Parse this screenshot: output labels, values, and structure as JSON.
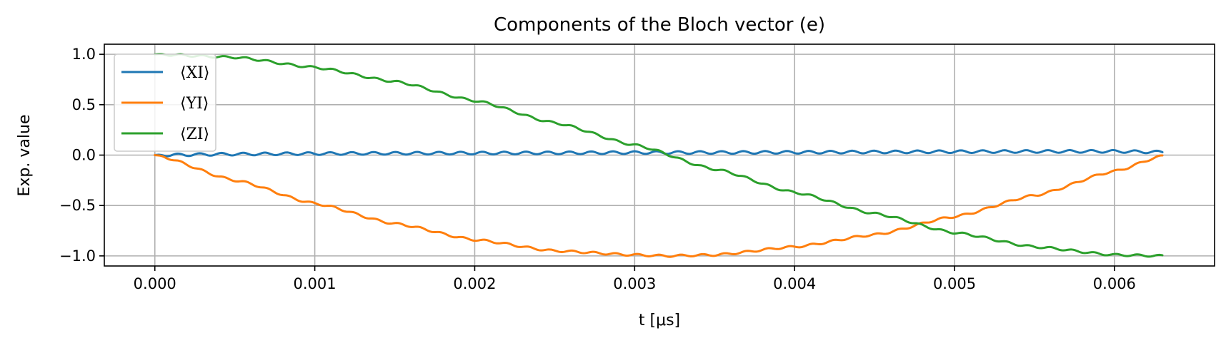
{
  "chart_data": {
    "type": "line",
    "title": "Components of the Bloch vector (e)",
    "xlabel": "t [μs]",
    "ylabel": "Exp. value",
    "xlim": [
      -0.000316,
      0.006626
    ],
    "ylim": [
      -1.1,
      1.1
    ],
    "x_ticks": [
      0.0,
      0.001,
      0.002,
      0.003,
      0.004,
      0.005,
      0.006
    ],
    "x_tick_labels": [
      "0.000",
      "0.001",
      "0.002",
      "0.003",
      "0.004",
      "0.005",
      "0.006"
    ],
    "y_ticks": [
      1.0,
      0.5,
      0.0,
      -0.5,
      -1.0
    ],
    "y_tick_labels": [
      "1.0",
      "0.5",
      "0.0",
      "−0.5",
      "−1.0"
    ],
    "grid": true,
    "legend_position": "upper left",
    "x_range": [
      0.0,
      0.0063
    ],
    "series": [
      {
        "name": "⟨XI⟩",
        "color": "#1f77b4",
        "x": [
          0.0,
          0.0005,
          0.001,
          0.0015,
          0.002,
          0.0025,
          0.003,
          0.0035,
          0.004,
          0.0045,
          0.005,
          0.0055,
          0.006,
          0.0063
        ],
        "values": [
          0.0,
          0.01,
          0.015,
          0.018,
          0.02,
          0.022,
          0.025,
          0.026,
          0.028,
          0.031,
          0.034,
          0.036,
          0.037,
          0.03
        ],
        "oscillation_amplitude": 0.013,
        "oscillation_period": 0.000136
      },
      {
        "name": "⟨YI⟩",
        "color": "#ff7f0e",
        "x": [
          0.0,
          0.0005,
          0.001,
          0.0015,
          0.002,
          0.0025,
          0.003,
          0.0032,
          0.0035,
          0.004,
          0.0045,
          0.005,
          0.0055,
          0.006,
          0.0063
        ],
        "values": [
          0.0,
          -0.25,
          -0.48,
          -0.68,
          -0.84,
          -0.95,
          -0.99,
          -1.0,
          -0.99,
          -0.91,
          -0.79,
          -0.61,
          -0.4,
          -0.16,
          -0.01
        ],
        "oscillation_amplitude": 0.01,
        "oscillation_period": 0.000136
      },
      {
        "name": "⟨ZI⟩",
        "color": "#2ca02c",
        "x": [
          0.0,
          0.0005,
          0.001,
          0.0015,
          0.002,
          0.0025,
          0.003,
          0.0035,
          0.004,
          0.0045,
          0.005,
          0.0055,
          0.006,
          0.0063
        ],
        "values": [
          1.0,
          0.97,
          0.87,
          0.73,
          0.54,
          0.32,
          0.1,
          -0.14,
          -0.37,
          -0.58,
          -0.77,
          -0.91,
          -0.99,
          -1.0
        ],
        "oscillation_amplitude": 0.01,
        "oscillation_period": 0.000136
      }
    ]
  }
}
